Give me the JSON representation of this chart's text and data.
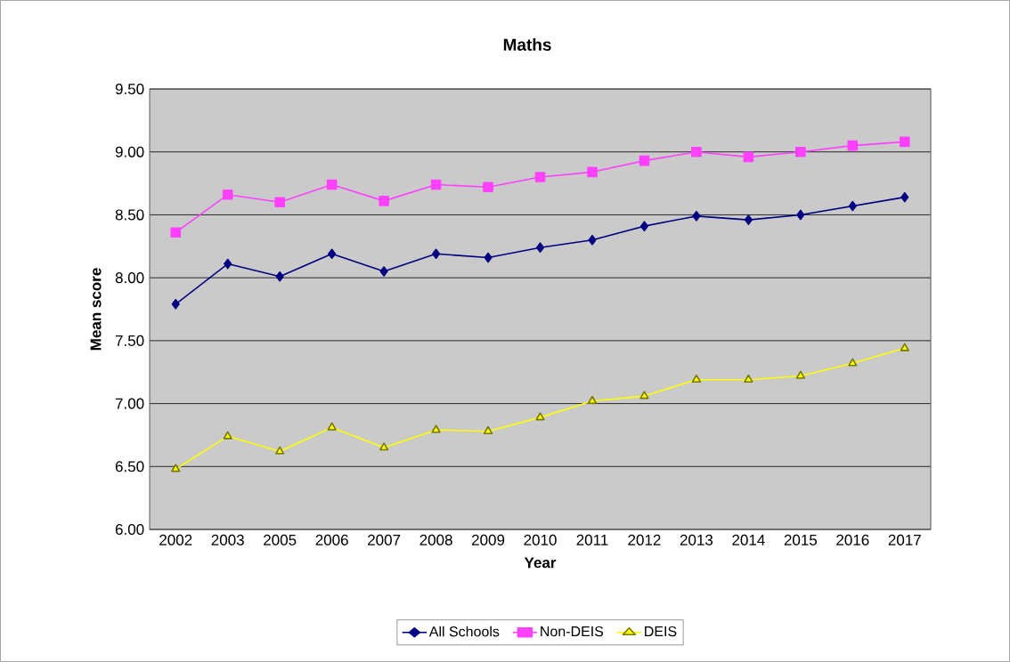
{
  "chart_data": {
    "type": "line",
    "title": "Maths",
    "xlabel": "Year",
    "ylabel": "Mean score",
    "categories": [
      "2002",
      "2003",
      "2005",
      "2006",
      "2007",
      "2008",
      "2009",
      "2010",
      "2011",
      "2012",
      "2013",
      "2014",
      "2015",
      "2016",
      "2017"
    ],
    "series": [
      {
        "name": "All Schools",
        "color": "#000080",
        "marker": "diamond",
        "values": [
          7.79,
          8.11,
          8.01,
          8.19,
          8.05,
          8.19,
          8.16,
          8.24,
          8.3,
          8.41,
          8.49,
          8.46,
          8.5,
          8.57,
          8.64
        ]
      },
      {
        "name": "Non-DEIS",
        "color": "#ff40ff",
        "marker": "square",
        "values": [
          8.36,
          8.66,
          8.6,
          8.74,
          8.61,
          8.74,
          8.72,
          8.8,
          8.84,
          8.93,
          9.0,
          8.96,
          9.0,
          9.05,
          9.08
        ]
      },
      {
        "name": "DEIS",
        "color": "#ffff00",
        "marker": "triangle",
        "values": [
          6.48,
          6.74,
          6.62,
          6.81,
          6.65,
          6.79,
          6.78,
          6.89,
          7.02,
          7.06,
          7.19,
          7.19,
          7.22,
          7.32,
          7.44
        ]
      }
    ],
    "ylim": [
      6,
      9.5
    ],
    "yticks": [
      {
        "value": 6,
        "label": "6.00"
      },
      {
        "value": 6.5,
        "label": "6.50"
      },
      {
        "value": 7,
        "label": "7.00"
      },
      {
        "value": 7.5,
        "label": "7.50"
      },
      {
        "value": 8,
        "label": "8.00"
      },
      {
        "value": 8.5,
        "label": "8.50"
      },
      {
        "value": 9,
        "label": "9.00"
      },
      {
        "value": 9.5,
        "label": "9.50"
      }
    ],
    "grid": "y",
    "legend": "bottom",
    "line_style": "solid"
  }
}
